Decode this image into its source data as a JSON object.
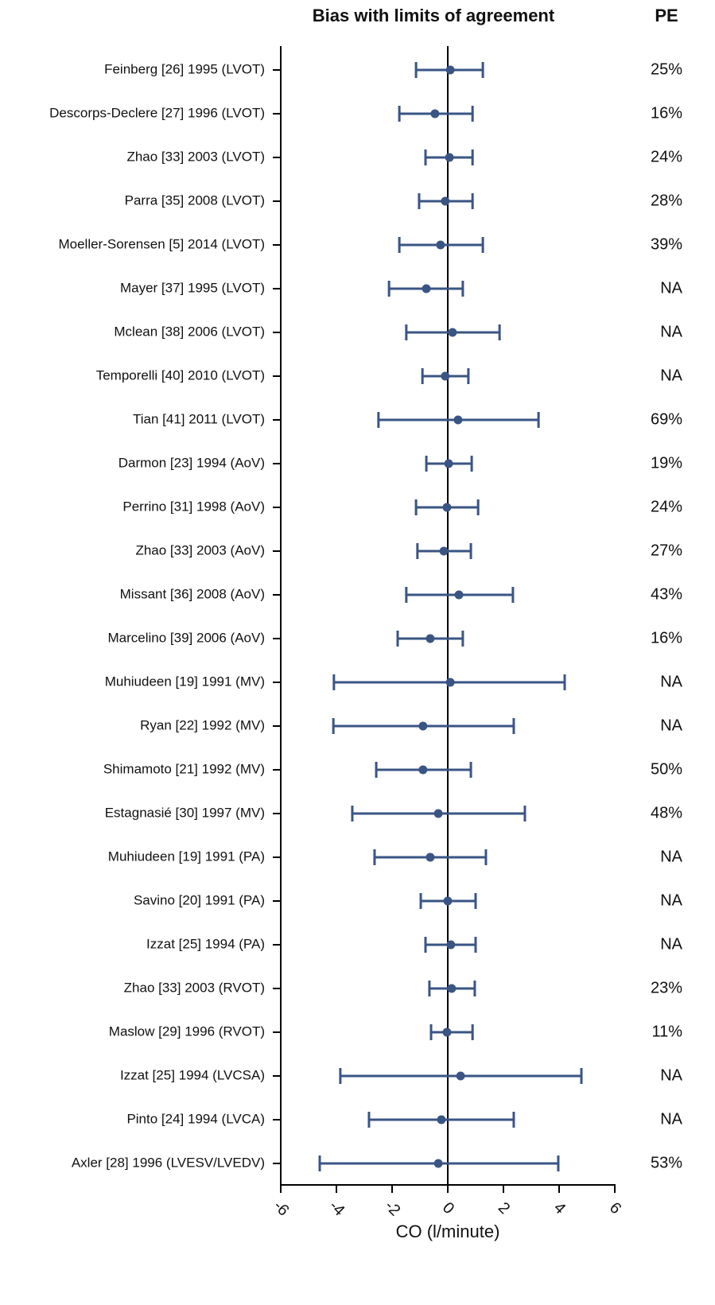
{
  "chart_data": {
    "type": "forest",
    "title": "Bias with limits of  agreement",
    "pe_title": "PE",
    "x_label": "CO (l/minute)",
    "color": "#3a5584",
    "xlim": [
      -6,
      6
    ],
    "xticks": [
      -6,
      -4,
      -2,
      0,
      2,
      4,
      6
    ],
    "categories": [
      "Feinberg [26] 1995 (LVOT)",
      "Descorps-Declere [27] 1996 (LVOT)",
      "Zhao [33] 2003 (LVOT)",
      "Parra [35] 2008 (LVOT)",
      "Moeller-Sorensen [5] 2014 (LVOT)",
      "Mayer [37] 1995 (LVOT)",
      "Mclean [38] 2006 (LVOT)",
      "Temporelli [40] 2010 (LVOT)",
      "Tian [41] 2011 (LVOT)",
      "Darmon [23] 1994 (AoV)",
      "Perrino [31] 1998 (AoV)",
      "Zhao [33] 2003 (AoV)",
      "Missant [36] 2008 (AoV)",
      "Marcelino [39] 2006 (AoV)",
      "Muhiudeen [19] 1991 (MV)",
      "Ryan [22] 1992 (MV)",
      "Shimamoto [21] 1992 (MV)",
      "Estagnasié [30] 1997 (MV)",
      "Muhiudeen [19] 1991 (PA)",
      "Savino [20] 1991 (PA)",
      "Izzat [25] 1994 (PA)",
      "Zhao [33] 2003 (RVOT)",
      "Maslow [29] 1996 (RVOT)",
      "Izzat [25] 1994 (LVCSA)",
      "Pinto [24] 1994 (LVCA)",
      "Axler [28] 1996 (LVESV/LVEDV)"
    ],
    "values": [
      0.09,
      -0.46,
      0.06,
      -0.09,
      -0.26,
      -0.77,
      0.17,
      -0.09,
      0.37,
      0.03,
      -0.03,
      -0.14,
      0.4,
      -0.63,
      0.09,
      -0.89,
      -0.89,
      -0.34,
      -0.63,
      0,
      0.11,
      0.14,
      -0.03,
      0.46,
      -0.23,
      -0.34
    ],
    "lower": [
      -1.14,
      -1.74,
      -0.8,
      -1.03,
      -1.74,
      -2.11,
      -1.49,
      -0.91,
      -2.49,
      -0.77,
      -1.14,
      -1.09,
      -1.49,
      -1.8,
      -4.09,
      -4.11,
      -2.57,
      -3.43,
      -2.63,
      -0.97,
      -0.8,
      -0.66,
      -0.6,
      -3.86,
      -2.83,
      -4.6
    ],
    "upper": [
      1.26,
      0.89,
      0.89,
      0.89,
      1.26,
      0.54,
      1.86,
      0.74,
      3.26,
      0.86,
      1.09,
      0.83,
      2.34,
      0.54,
      4.2,
      2.37,
      0.83,
      2.77,
      1.37,
      1,
      1,
      0.97,
      0.89,
      4.8,
      2.37,
      3.97
    ],
    "pe": [
      "25%",
      "16%",
      "24%",
      "28%",
      "39%",
      "NA",
      "NA",
      "NA",
      "69%",
      "19%",
      "24%",
      "27%",
      "43%",
      "16%",
      "NA",
      "NA",
      "50%",
      "48%",
      "NA",
      "NA",
      "NA",
      "23%",
      "11%",
      "NA",
      "NA",
      "53%"
    ]
  }
}
